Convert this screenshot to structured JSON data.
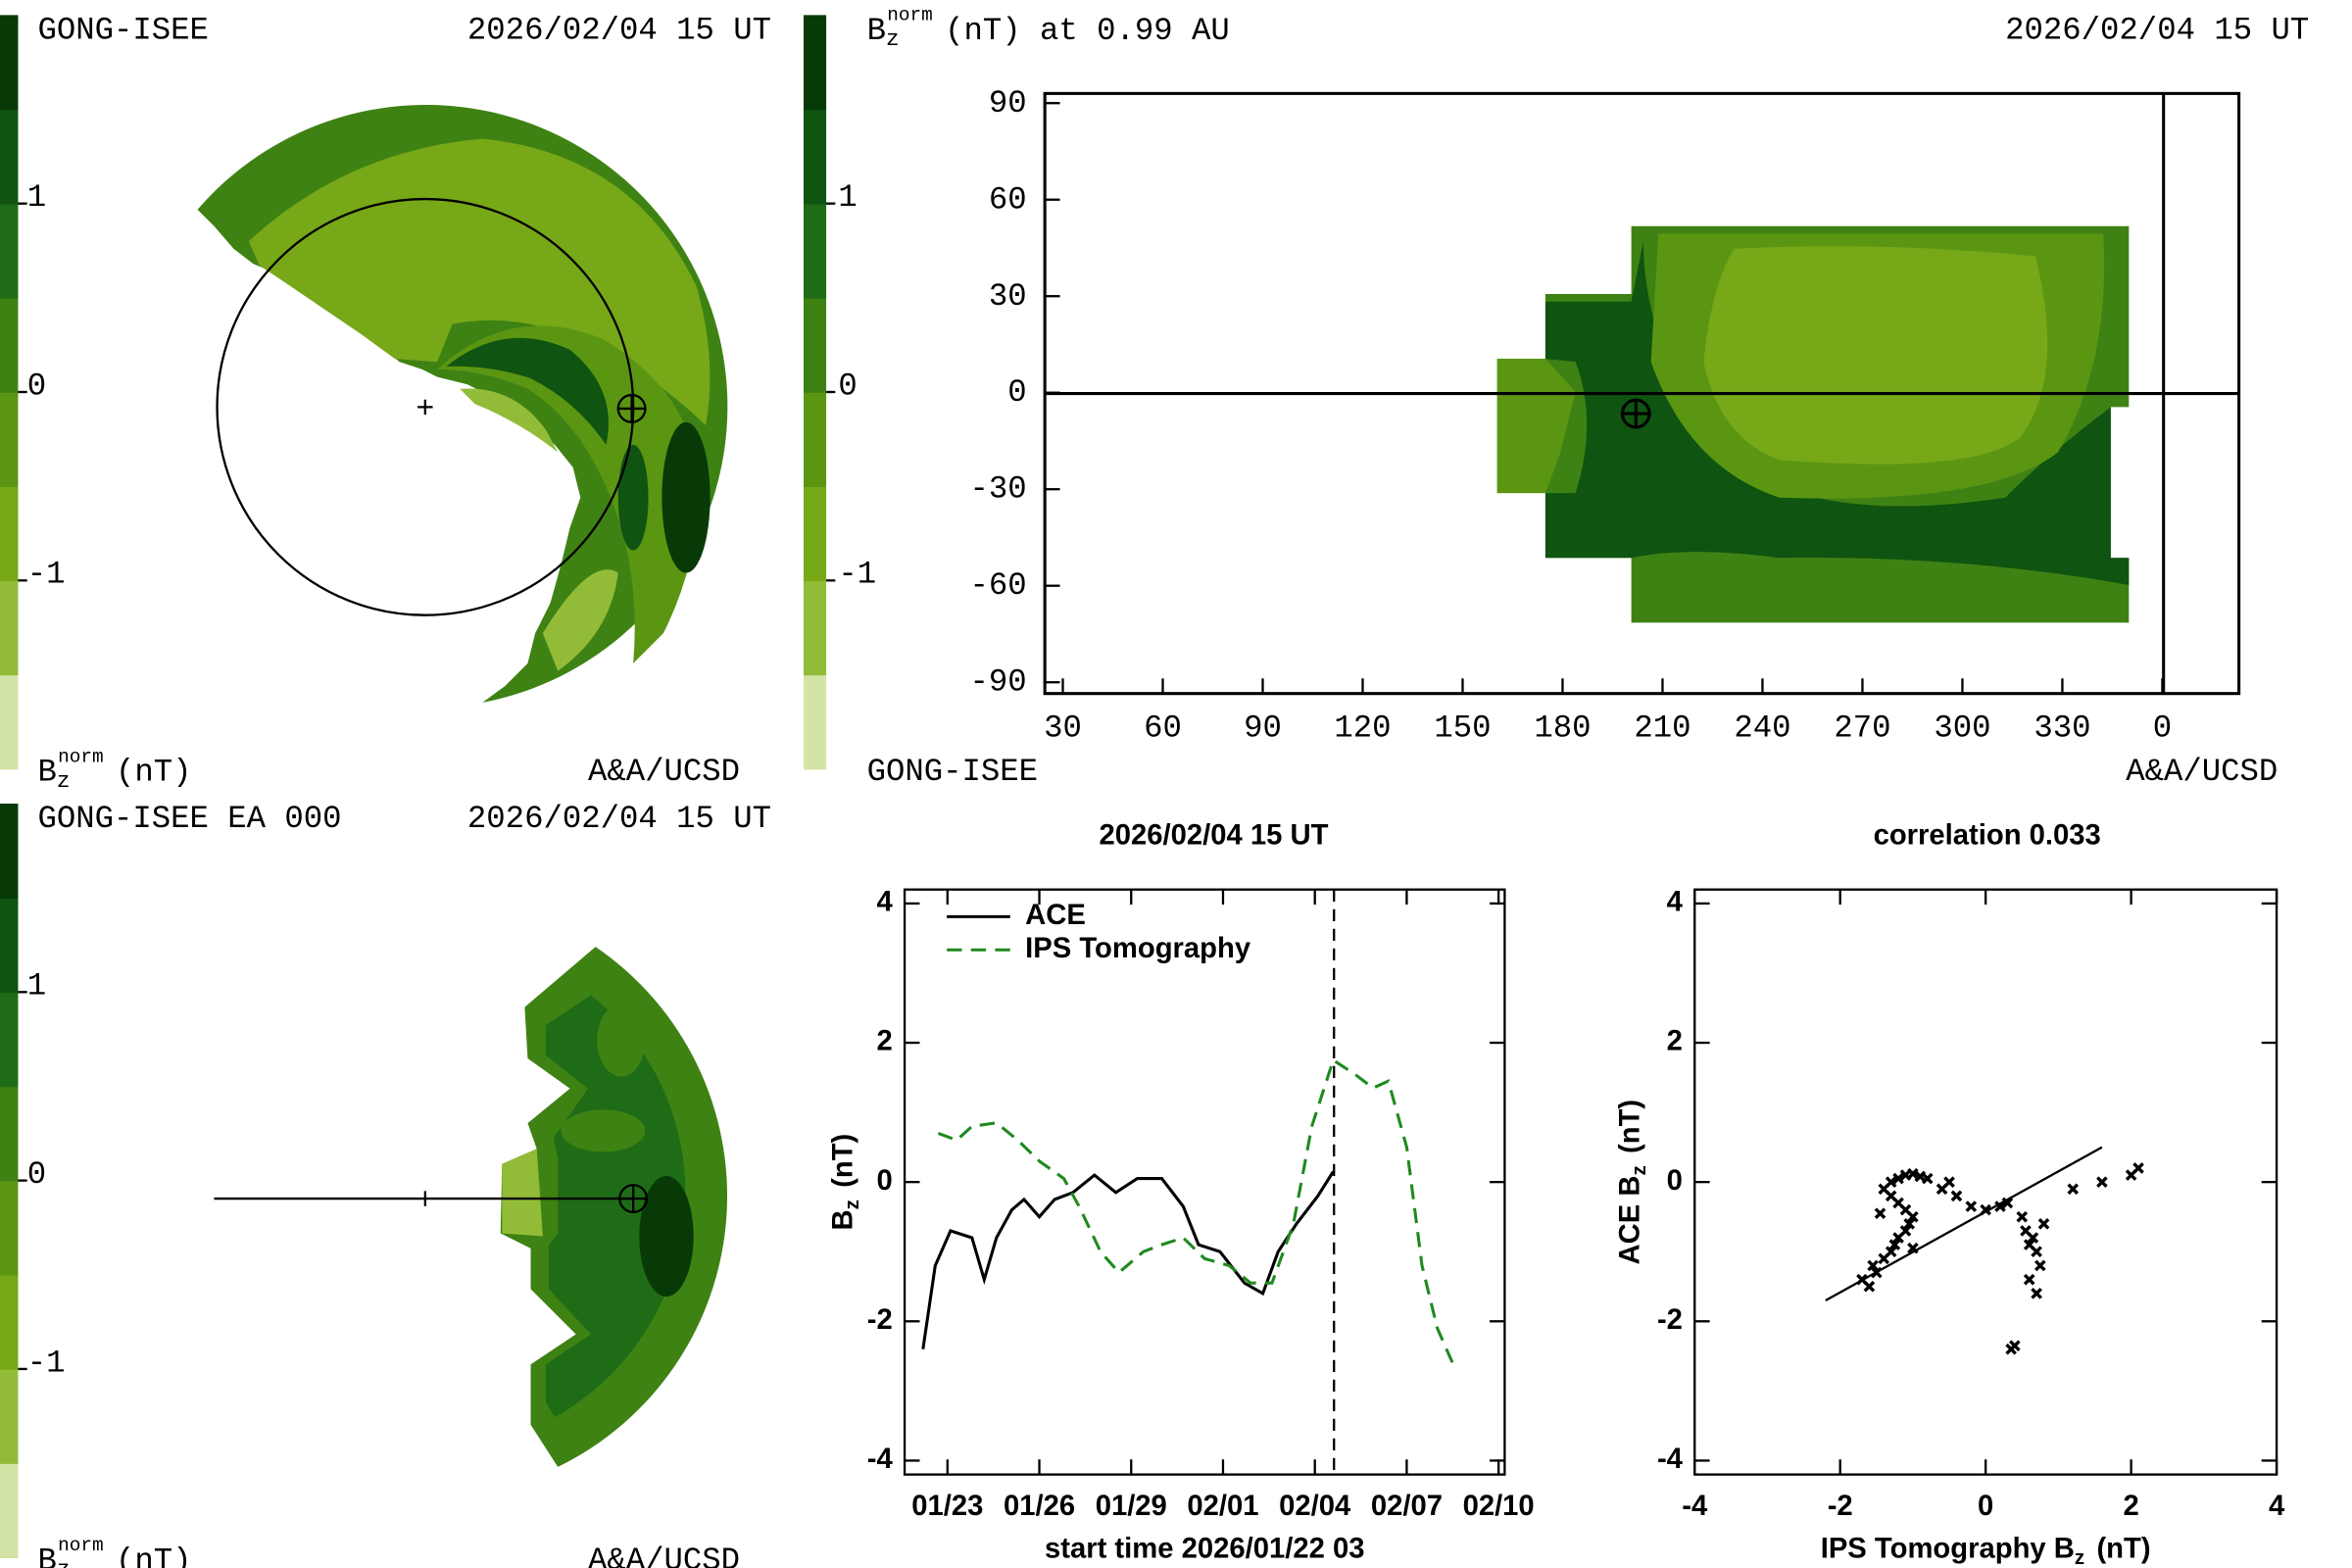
{
  "chart_data": [
    {
      "type": "polar-map",
      "source": "GONG-ISEE",
      "time": "2026/02/04 15 UT",
      "credit": "A&A/UCSD",
      "colorbar": {
        "label": {
          "base": "B",
          "sub": "z",
          "sup": "norm",
          "rest": "(nT)"
        },
        "lim": [
          -2,
          2
        ],
        "ticks": [
          1,
          0,
          -1
        ],
        "colors": [
          "#d2e5a6",
          "#92bc38",
          "#77a818",
          "#5b9613",
          "#3f8214",
          "#1f6c16",
          "#0f5410",
          "#083a08"
        ]
      }
    },
    {
      "type": "latlon-map",
      "title": {
        "base": "B",
        "sub": "z",
        "sup": "norm",
        "rest": "(nT) at 0.99 AU"
      },
      "time": "2026/02/04 15 UT",
      "source": "GONG-ISEE",
      "credit": "A&A/UCSD",
      "xlim": [
        24.6,
        383
      ],
      "ylim": [
        -93.5,
        93
      ],
      "xticks": [
        30,
        60,
        90,
        120,
        150,
        180,
        210,
        240,
        270,
        300,
        330,
        {
          "value": 360,
          "label": "0"
        }
      ],
      "yticks": [
        90,
        60,
        30,
        0,
        -30,
        -60,
        -90
      ],
      "earth": {
        "lon": 202,
        "lat": -6.5
      },
      "colorbar": {
        "lim": [
          -2,
          2
        ],
        "ticks": [
          1,
          0,
          -1
        ],
        "colors": [
          "#d2e5a6",
          "#92bc38",
          "#77a818",
          "#5b9613",
          "#3f8214",
          "#1f6c16",
          "#0f5410",
          "#083a08"
        ]
      }
    },
    {
      "type": "polar-map",
      "source": "GONG-ISEE EA 000",
      "time": "2026/02/04 15 UT",
      "credit": "A&A/UCSD",
      "colorbar": {
        "label": {
          "base": "B",
          "sub": "z",
          "sup": "norm",
          "rest": "(nT)"
        },
        "lim": [
          -2,
          2
        ],
        "ticks": [
          1,
          0,
          -1
        ],
        "colors": [
          "#d2e5a6",
          "#92bc38",
          "#77a818",
          "#5b9613",
          "#3f8214",
          "#1f6c16",
          "#0f5410",
          "#083a08"
        ]
      }
    },
    {
      "type": "line",
      "title": "2026/02/04 15 UT",
      "xlabel": "start time 2026/01/22 03",
      "ylabel": {
        "base": "B",
        "sub": "z",
        "rest": "(nT)"
      },
      "xlim": [
        21.6,
        41.2
      ],
      "ylim": [
        -4.2,
        4.2
      ],
      "xticks": [
        {
          "value": 23,
          "label": "01/23"
        },
        {
          "value": 26,
          "label": "01/26"
        },
        {
          "value": 29,
          "label": "01/29"
        },
        {
          "value": 32,
          "label": "02/01"
        },
        {
          "value": 35,
          "label": "02/04"
        },
        {
          "value": 38,
          "label": "02/07"
        },
        {
          "value": 41,
          "label": "02/10"
        }
      ],
      "yticks": [
        -4,
        -2,
        0,
        2,
        4
      ],
      "legend": "upper left",
      "vline": 35.625,
      "series": [
        {
          "name": "ACE",
          "color": "#000000",
          "dash": "solid",
          "x": [
            22.2,
            22.6,
            23.1,
            23.8,
            24.2,
            24.6,
            25.1,
            25.5,
            26.0,
            26.5,
            27.1,
            27.8,
            28.5,
            29.2,
            30.0,
            30.7,
            31.2,
            31.9,
            32.7,
            33.3,
            33.8,
            34.4,
            35.1,
            35.6
          ],
          "values": [
            -2.4,
            -1.2,
            -0.7,
            -0.8,
            -1.4,
            -0.8,
            -0.4,
            -0.25,
            -0.5,
            -0.25,
            -0.15,
            0.1,
            -0.15,
            0.05,
            0.05,
            -0.35,
            -0.9,
            -1.0,
            -1.45,
            -1.6,
            -1.0,
            -0.6,
            -0.2,
            0.15
          ]
        },
        {
          "name": "IPS Tomography",
          "color": "#1f8a1f",
          "dash": "dashed",
          "x": [
            22.7,
            23.3,
            23.8,
            24.6,
            25.3,
            26.0,
            26.8,
            27.3,
            28.0,
            28.6,
            29.4,
            30.0,
            30.7,
            31.4,
            32.2,
            32.9,
            33.6,
            34.3,
            34.9,
            35.6,
            36.3,
            36.9,
            37.4,
            38.0,
            38.5,
            39.0,
            39.5
          ],
          "values": [
            0.7,
            0.6,
            0.8,
            0.85,
            0.6,
            0.3,
            0.05,
            -0.35,
            -1.0,
            -1.3,
            -1.0,
            -0.9,
            -0.8,
            -1.1,
            -1.2,
            -1.45,
            -1.45,
            -0.6,
            0.8,
            1.75,
            1.55,
            1.35,
            1.45,
            0.5,
            -1.2,
            -2.1,
            -2.6
          ]
        }
      ]
    },
    {
      "type": "scatter",
      "title": "correlation 0.033",
      "xlabel": {
        "base": "IPS Tomography B",
        "sub": "z",
        "rest": "(nT)"
      },
      "ylabel": {
        "base": "ACE B",
        "sub": "z",
        "rest": "(nT)"
      },
      "xlim": [
        -4,
        4
      ],
      "ylim": [
        -4.2,
        4.2
      ],
      "xticks": [
        -4,
        -2,
        0,
        2,
        4
      ],
      "yticks": [
        -4,
        -2,
        0,
        2,
        4
      ],
      "series": [
        {
          "color": "#000000",
          "x": [
            -1.7,
            -1.6,
            -1.5,
            -1.55,
            -1.4,
            -1.3,
            -1.25,
            -1.2,
            -1.1,
            -1.05,
            -1.0,
            -1.1,
            -1.2,
            -1.3,
            -1.4,
            -1.3,
            -1.2,
            -1.1,
            -1.0,
            -0.9,
            -0.8,
            -0.6,
            -0.5,
            -0.4,
            -0.2,
            0.0,
            0.2,
            0.3,
            0.5,
            0.55,
            0.6,
            0.7,
            0.75,
            0.6,
            0.7,
            0.65,
            0.8,
            0.4,
            0.35,
            1.2,
            1.6,
            2.0,
            2.1,
            -1.45,
            -1.0
          ],
          "values": [
            -1.4,
            -1.5,
            -1.3,
            -1.2,
            -1.1,
            -1.0,
            -0.9,
            -0.8,
            -0.7,
            -0.6,
            -0.5,
            -0.4,
            -0.3,
            -0.2,
            -0.1,
            0.0,
            0.05,
            0.1,
            0.12,
            0.08,
            0.05,
            -0.1,
            0.0,
            -0.2,
            -0.35,
            -0.4,
            -0.35,
            -0.3,
            -0.5,
            -0.7,
            -0.9,
            -1.0,
            -1.2,
            -1.4,
            -1.6,
            -0.8,
            -0.6,
            -2.35,
            -2.4,
            -0.1,
            0.0,
            0.1,
            0.2,
            -0.45,
            -0.95
          ]
        }
      ],
      "fit_line": {
        "x": [
          -2.2,
          1.6
        ],
        "values": [
          -1.7,
          0.5
        ]
      }
    }
  ]
}
